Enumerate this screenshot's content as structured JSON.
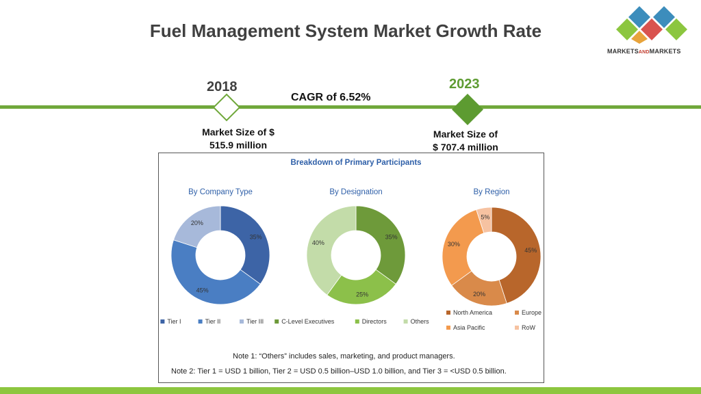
{
  "header": {
    "title": "Fuel Management System Market Growth Rate"
  },
  "logo": {
    "text_main": "MARKETS",
    "text_and": "AND",
    "text_end": "MARKETS",
    "colors": [
      "#3c8dbc",
      "#8cc63f",
      "#d9534f",
      "#e8a33b"
    ]
  },
  "timeline": {
    "year_start": "2018",
    "year_end": "2023",
    "cagr_label": "CAGR of 6.52%",
    "size_start_line1": "Market Size of $",
    "size_start_line2": "515.9 million",
    "size_end_line1": "Market Size of",
    "size_end_line2": "$ 707.4 million",
    "accent": "#70a83b"
  },
  "panel": {
    "heading": "Breakdown of Primary Participants",
    "note1": "Note 1: “Others” includes sales, marketing, and product managers.",
    "note2": "Note 2: Tier 1 = USD 1 billion, Tier 2 = USD 0.5 billion–USD 1.0 billion, and Tier 3 = <USD 0.5 billion."
  },
  "chart_data": [
    {
      "type": "pie",
      "title": "By Company Type",
      "categories": [
        "Tier I",
        "Tier II",
        "Tier III"
      ],
      "values": [
        35,
        45,
        20
      ],
      "labels": [
        "35%",
        "45%",
        "20%"
      ],
      "colors": [
        "#3d64a6",
        "#4a7ec3",
        "#a7b9da"
      ],
      "legend": "bottom"
    },
    {
      "type": "pie",
      "title": "By Designation",
      "categories": [
        "C-Level Executives",
        "Directors",
        "Others"
      ],
      "values": [
        35,
        25,
        40
      ],
      "labels": [
        "35%",
        "25%",
        "40%"
      ],
      "colors": [
        "#6e9a3a",
        "#8cc04a",
        "#c3dca9"
      ],
      "legend": "bottom"
    },
    {
      "type": "pie",
      "title": "By Region",
      "categories": [
        "North America",
        "Europe",
        "Asia Pacific",
        "RoW"
      ],
      "values": [
        45,
        20,
        30,
        5
      ],
      "labels": [
        "45%",
        "20%",
        "30%",
        "5%"
      ],
      "colors": [
        "#b8662b",
        "#d98a4a",
        "#f39a4e",
        "#f6c2a1"
      ],
      "legend": "bottom"
    }
  ]
}
